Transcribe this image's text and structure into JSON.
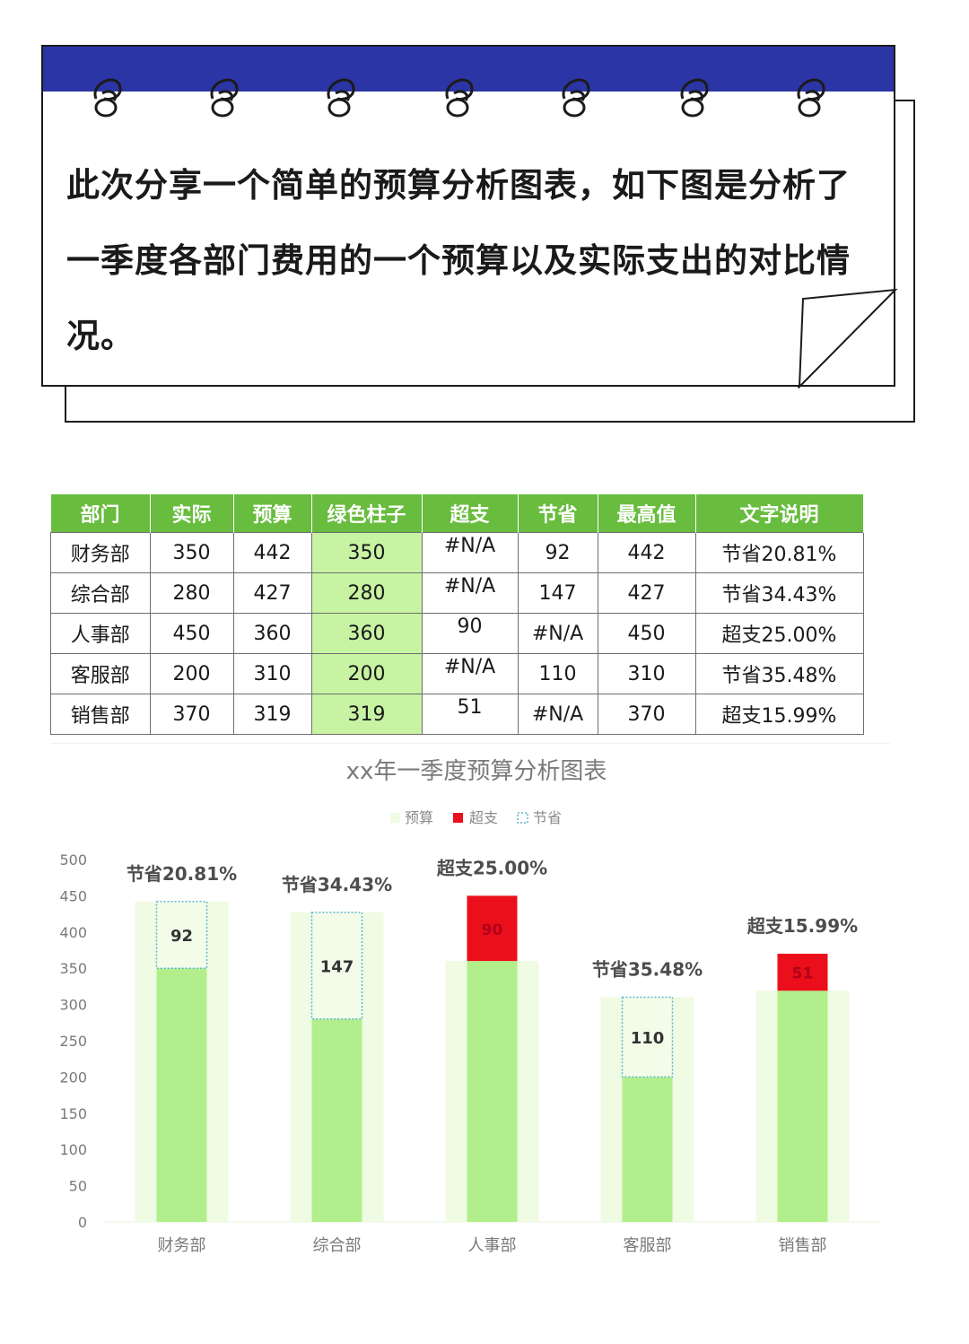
{
  "intro": {
    "text": "此次分享一个简单的预算分析图表，如下图是分析了一季度各部门费用的一个预算以及实际支出的对比情况。"
  },
  "table": {
    "headers": [
      "部门",
      "实际",
      "预算",
      "绿色柱子",
      "超支",
      "节省",
      "最高值",
      "文字说明"
    ],
    "rows": [
      [
        "财务部",
        "350",
        "442",
        "350",
        "#N/A",
        "92",
        "442",
        "节省20.81%"
      ],
      [
        "综合部",
        "280",
        "427",
        "280",
        "#N/A",
        "147",
        "427",
        "节省34.43%"
      ],
      [
        "人事部",
        "450",
        "360",
        "360",
        "90",
        "#N/A",
        "450",
        "超支25.00%"
      ],
      [
        "客服部",
        "200",
        "310",
        "200",
        "#N/A",
        "110",
        "310",
        "节省35.48%"
      ],
      [
        "销售部",
        "370",
        "319",
        "319",
        "51",
        "#N/A",
        "370",
        "超支15.99%"
      ]
    ]
  },
  "chart_data": {
    "type": "bar",
    "title": "xx年一季度预算分析图表",
    "categories": [
      "财务部",
      "综合部",
      "人事部",
      "客服部",
      "销售部"
    ],
    "series": [
      {
        "name": "预算",
        "values": [
          442,
          427,
          360,
          310,
          319
        ]
      },
      {
        "name": "超支",
        "values": [
          null,
          null,
          90,
          null,
          51
        ]
      },
      {
        "name": "节省",
        "values": [
          92,
          147,
          null,
          110,
          null
        ]
      }
    ],
    "green_bar": [
      350,
      280,
      360,
      200,
      319
    ],
    "annotations": [
      "节省20.81%",
      "节省34.43%",
      "超支25.00%",
      "节省35.48%",
      "超支15.99%"
    ],
    "ylim": [
      0,
      500
    ],
    "yticks": [
      0,
      50,
      100,
      150,
      200,
      250,
      300,
      350,
      400,
      450,
      500
    ],
    "legend_position": "top",
    "colors": {
      "budget": "#effbe3",
      "green": "#b2ef8c",
      "over": "#ea0f1a",
      "save_border": "#5bb5d0",
      "save_fill": "#f3fce9"
    }
  }
}
